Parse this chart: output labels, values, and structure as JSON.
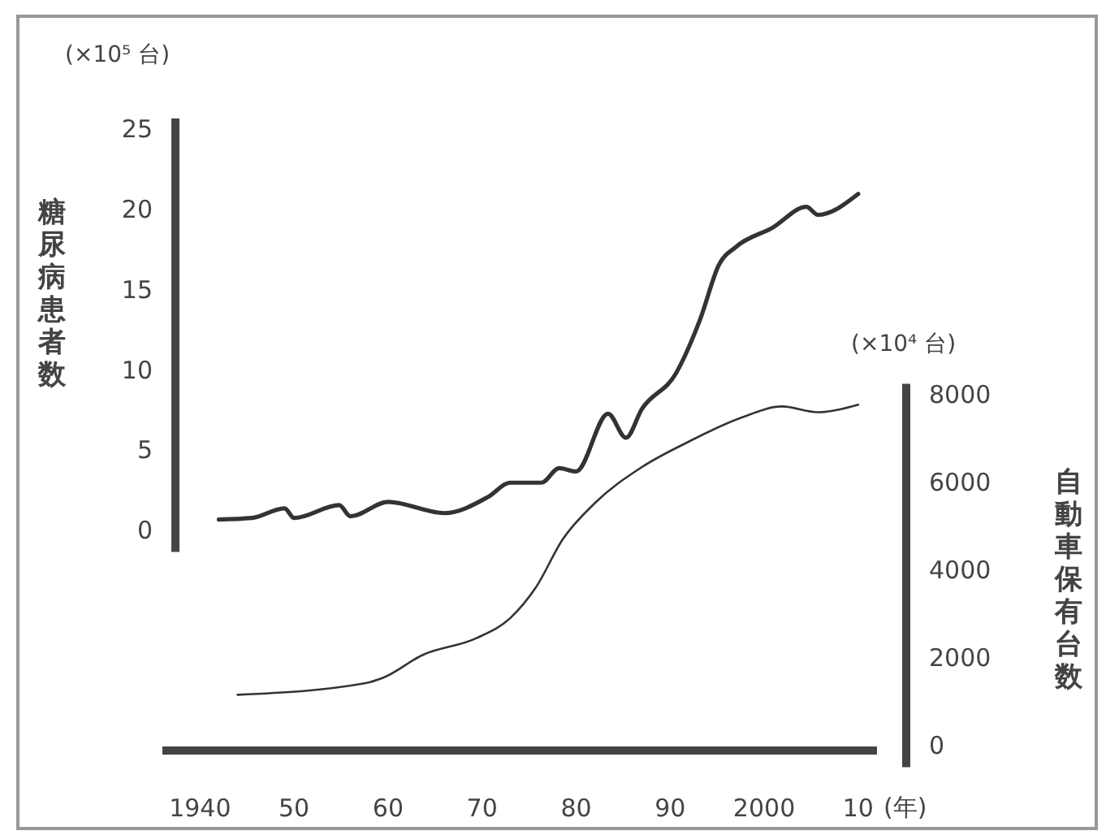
{
  "chart_data": {
    "type": "line",
    "ylabel": "糖尿病患者数",
    "y2label": "自動車保有台数",
    "annotations": [
      "(×10⁵ 台)",
      "(×10⁴ 台)",
      "(年)"
    ],
    "xlim": [
      1936,
      2012
    ],
    "xticks": [
      1940,
      {
        "value": 1950,
        "label": "50"
      },
      {
        "value": 1960,
        "label": "60"
      },
      {
        "value": 1970,
        "label": "70"
      },
      {
        "value": 1980,
        "label": "80"
      },
      {
        "value": 1990,
        "label": "90"
      },
      2000,
      {
        "value": 2010,
        "label": "10"
      }
    ],
    "ylim": [
      -13.7,
      25.7
    ],
    "yticks": [
      0,
      5,
      10,
      15,
      20,
      25
    ],
    "y2lim": [
      -100,
      14300
    ],
    "y2ticks": [
      0,
      2000,
      4000,
      6000,
      8000
    ],
    "grid": false,
    "marker": "none",
    "line_style": "solid",
    "series": [
      {
        "color": "#333333",
        "x": [
          1942,
          1945.5,
          1949,
          1950,
          1954.8,
          1956,
          1960,
          1966,
          1970.6,
          1973,
          1976.3,
          1978.2,
          1980,
          1983.4,
          1985.3,
          1987,
          1990.6,
          1993.2,
          1995.2,
          1997,
          2000.9,
          2004.5,
          2005.7,
          2010
        ],
        "values": [
          0.7,
          0.8,
          1.4,
          0.8,
          1.6,
          0.9,
          1.8,
          1.1,
          2.1,
          3.0,
          3.0,
          3.9,
          3.7,
          7.3,
          5.8,
          7.6,
          9.8,
          13.2,
          16.6,
          17.7,
          18.9,
          20.2,
          19.7,
          21.0
        ]
      },
      {
        "color": "#333333",
        "axis": "y2",
        "x": [
          1944,
          1957.5,
          1959.5,
          1963.7,
          1969.4,
          1973,
          1975.7,
          1978.6,
          1982,
          1987,
          1991.8,
          1997.5,
          2001.9,
          2005.7,
          2010
        ],
        "values": [
          1170,
          1430,
          1560,
          2080,
          2460,
          2920,
          3610,
          4720,
          5540,
          6360,
          6920,
          7480,
          7740,
          7610,
          7780
        ]
      }
    ]
  }
}
